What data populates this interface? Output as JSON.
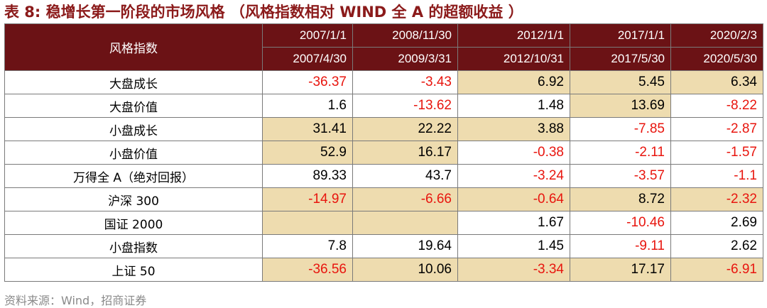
{
  "title": "表 8:  稳增长第一阶段的市场风格 （风格指数相对 WIND 全 A 的超额收益 ）",
  "table": {
    "corner_label": "风格指数",
    "periods": [
      {
        "start": "2007/1/1",
        "end": "2007/4/30"
      },
      {
        "start": "2008/11/30",
        "end": "2009/3/31"
      },
      {
        "start": "2012/1/1",
        "end": "2012/10/31"
      },
      {
        "start": "2017/1/1",
        "end": "2017/5/30"
      },
      {
        "start": "2020/2/3",
        "end": "2020/5/30"
      }
    ],
    "rows": [
      {
        "label": "大盘成长",
        "values": [
          "-36.37",
          "-3.43",
          "6.92",
          "5.45",
          "6.34"
        ]
      },
      {
        "label": "大盘价值",
        "values": [
          "1.6",
          "-13.62",
          "1.48",
          "13.69",
          "-8.22"
        ]
      },
      {
        "label": "小盘成长",
        "values": [
          "31.41",
          "22.22",
          "3.88",
          "-7.85",
          "-2.87"
        ]
      },
      {
        "label": "小盘价值",
        "values": [
          "52.9",
          "16.17",
          "-0.38",
          "-2.11",
          "-1.57"
        ]
      },
      {
        "label": "万得全 A（绝对回报）",
        "values": [
          "89.33",
          "43.7",
          "-3.24",
          "-3.57",
          "-1.1"
        ]
      },
      {
        "label": "沪深 300",
        "values": [
          "-14.97",
          "-6.66",
          "-0.64",
          "8.72",
          "-2.32"
        ]
      },
      {
        "label": "国证 2000",
        "values": [
          "",
          "",
          "1.67",
          "-10.46",
          "2.69"
        ]
      },
      {
        "label": "小盘指数",
        "values": [
          "7.8",
          "19.64",
          "1.45",
          "-9.11",
          "2.62"
        ]
      },
      {
        "label": "上证 50",
        "values": [
          "-36.56",
          "10.06",
          "-3.34",
          "17.17",
          "-6.91"
        ]
      }
    ],
    "highlight": [
      [
        false,
        false,
        true,
        true,
        true
      ],
      [
        false,
        false,
        false,
        true,
        false
      ],
      [
        true,
        true,
        true,
        false,
        false
      ],
      [
        true,
        true,
        false,
        false,
        false
      ],
      [
        false,
        false,
        false,
        false,
        false
      ],
      [
        true,
        true,
        true,
        true,
        true
      ],
      [
        true,
        true,
        false,
        false,
        false
      ],
      [
        false,
        false,
        false,
        false,
        false
      ],
      [
        true,
        true,
        true,
        true,
        true
      ]
    ],
    "colors": {
      "header_bg": "#6b1215",
      "highlight_bg": "#eedcaf",
      "negative_text": "#e8150e",
      "title_text": "#8b1a1a"
    }
  },
  "source": "资料来源：Wind，招商证券"
}
